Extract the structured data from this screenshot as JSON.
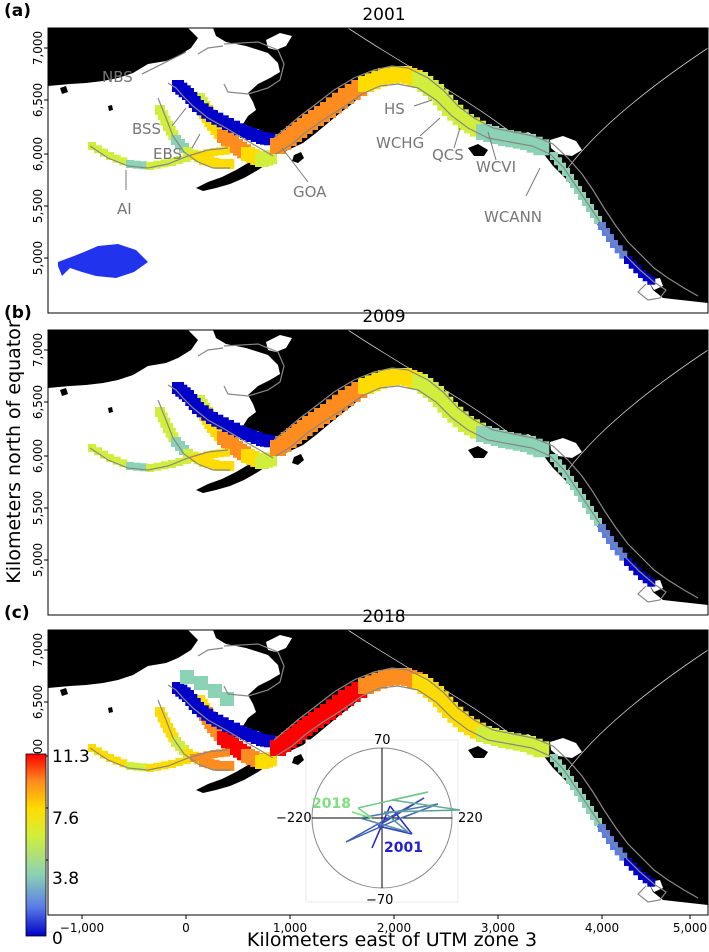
{
  "figure": {
    "ylabel": "Kilometers north of equator",
    "xlabel": "Kilometers east of UTM zone 3",
    "x_ticks": [
      "−1,000",
      "0",
      "1,000",
      "2,000",
      "3,000",
      "4,000",
      "5,000"
    ],
    "y_ticks": [
      "7,000",
      "6,500",
      "6,000",
      "5,500",
      "5,000"
    ]
  },
  "panels": [
    {
      "letter": "(a)",
      "year": "2001"
    },
    {
      "letter": "(b)",
      "year": "2009"
    },
    {
      "letter": "(c)",
      "year": "2018"
    }
  ],
  "region_labels": [
    "NBS",
    "BSS",
    "EBS",
    "AI",
    "GOA",
    "HS",
    "WCHG",
    "QCS",
    "WCVI",
    "WCANN"
  ],
  "legend": {
    "ticks": [
      "11.3",
      "7.6",
      "3.8",
      "0"
    ],
    "colors": [
      "#0000c8",
      "#5a7de6",
      "#8cd2b4",
      "#d2ee3c",
      "#ffdc00",
      "#ff8c1e",
      "#ff0000"
    ]
  },
  "inset": {
    "top_label": "70",
    "bottom_label": "−70",
    "left_label": "−220",
    "right_label": "220",
    "start_year": "2001",
    "end_year": "2018",
    "start_color": "#2020d0",
    "end_color": "#7ee07e"
  },
  "colors": {
    "land": "#000000",
    "outline": "#888888",
    "label": "#777777"
  }
}
